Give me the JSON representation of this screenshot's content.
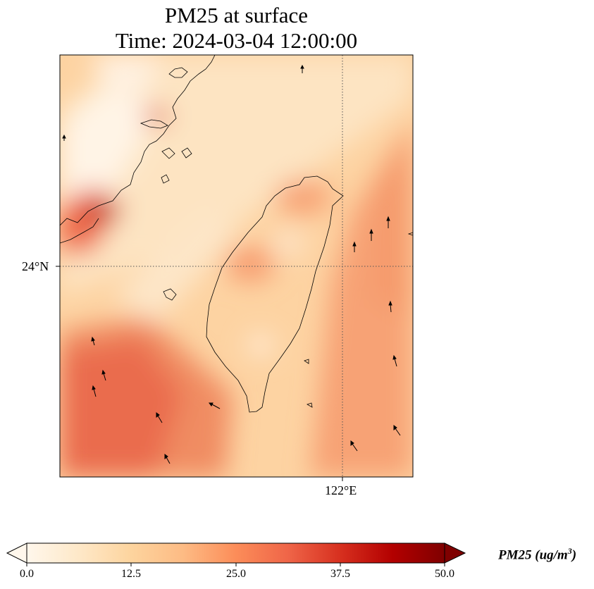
{
  "title": {
    "line1": "PM25 at surface",
    "line2": "Time: 2024-03-04 12:00:00"
  },
  "axes": {
    "lat_tick": "24°N",
    "lon_tick": "122°E",
    "gridlines": "dotted"
  },
  "colorbar": {
    "label_main": "PM25 (ug/m",
    "label_exp": "3",
    "label_end": ")",
    "range": [
      0,
      50
    ],
    "ticks": [
      "0.0",
      "12.5",
      "25.0",
      "37.5",
      "50.0"
    ],
    "extend": "both",
    "colormap": "OrRd",
    "colors": [
      "#fff7ec",
      "#fee8c8",
      "#fdd49e",
      "#fdbb84",
      "#fc8d59",
      "#ef6548",
      "#d7301f",
      "#b30000",
      "#7f0000"
    ]
  },
  "map": {
    "coastline_color": "#000000",
    "wind_vectors": "black arrows"
  }
}
